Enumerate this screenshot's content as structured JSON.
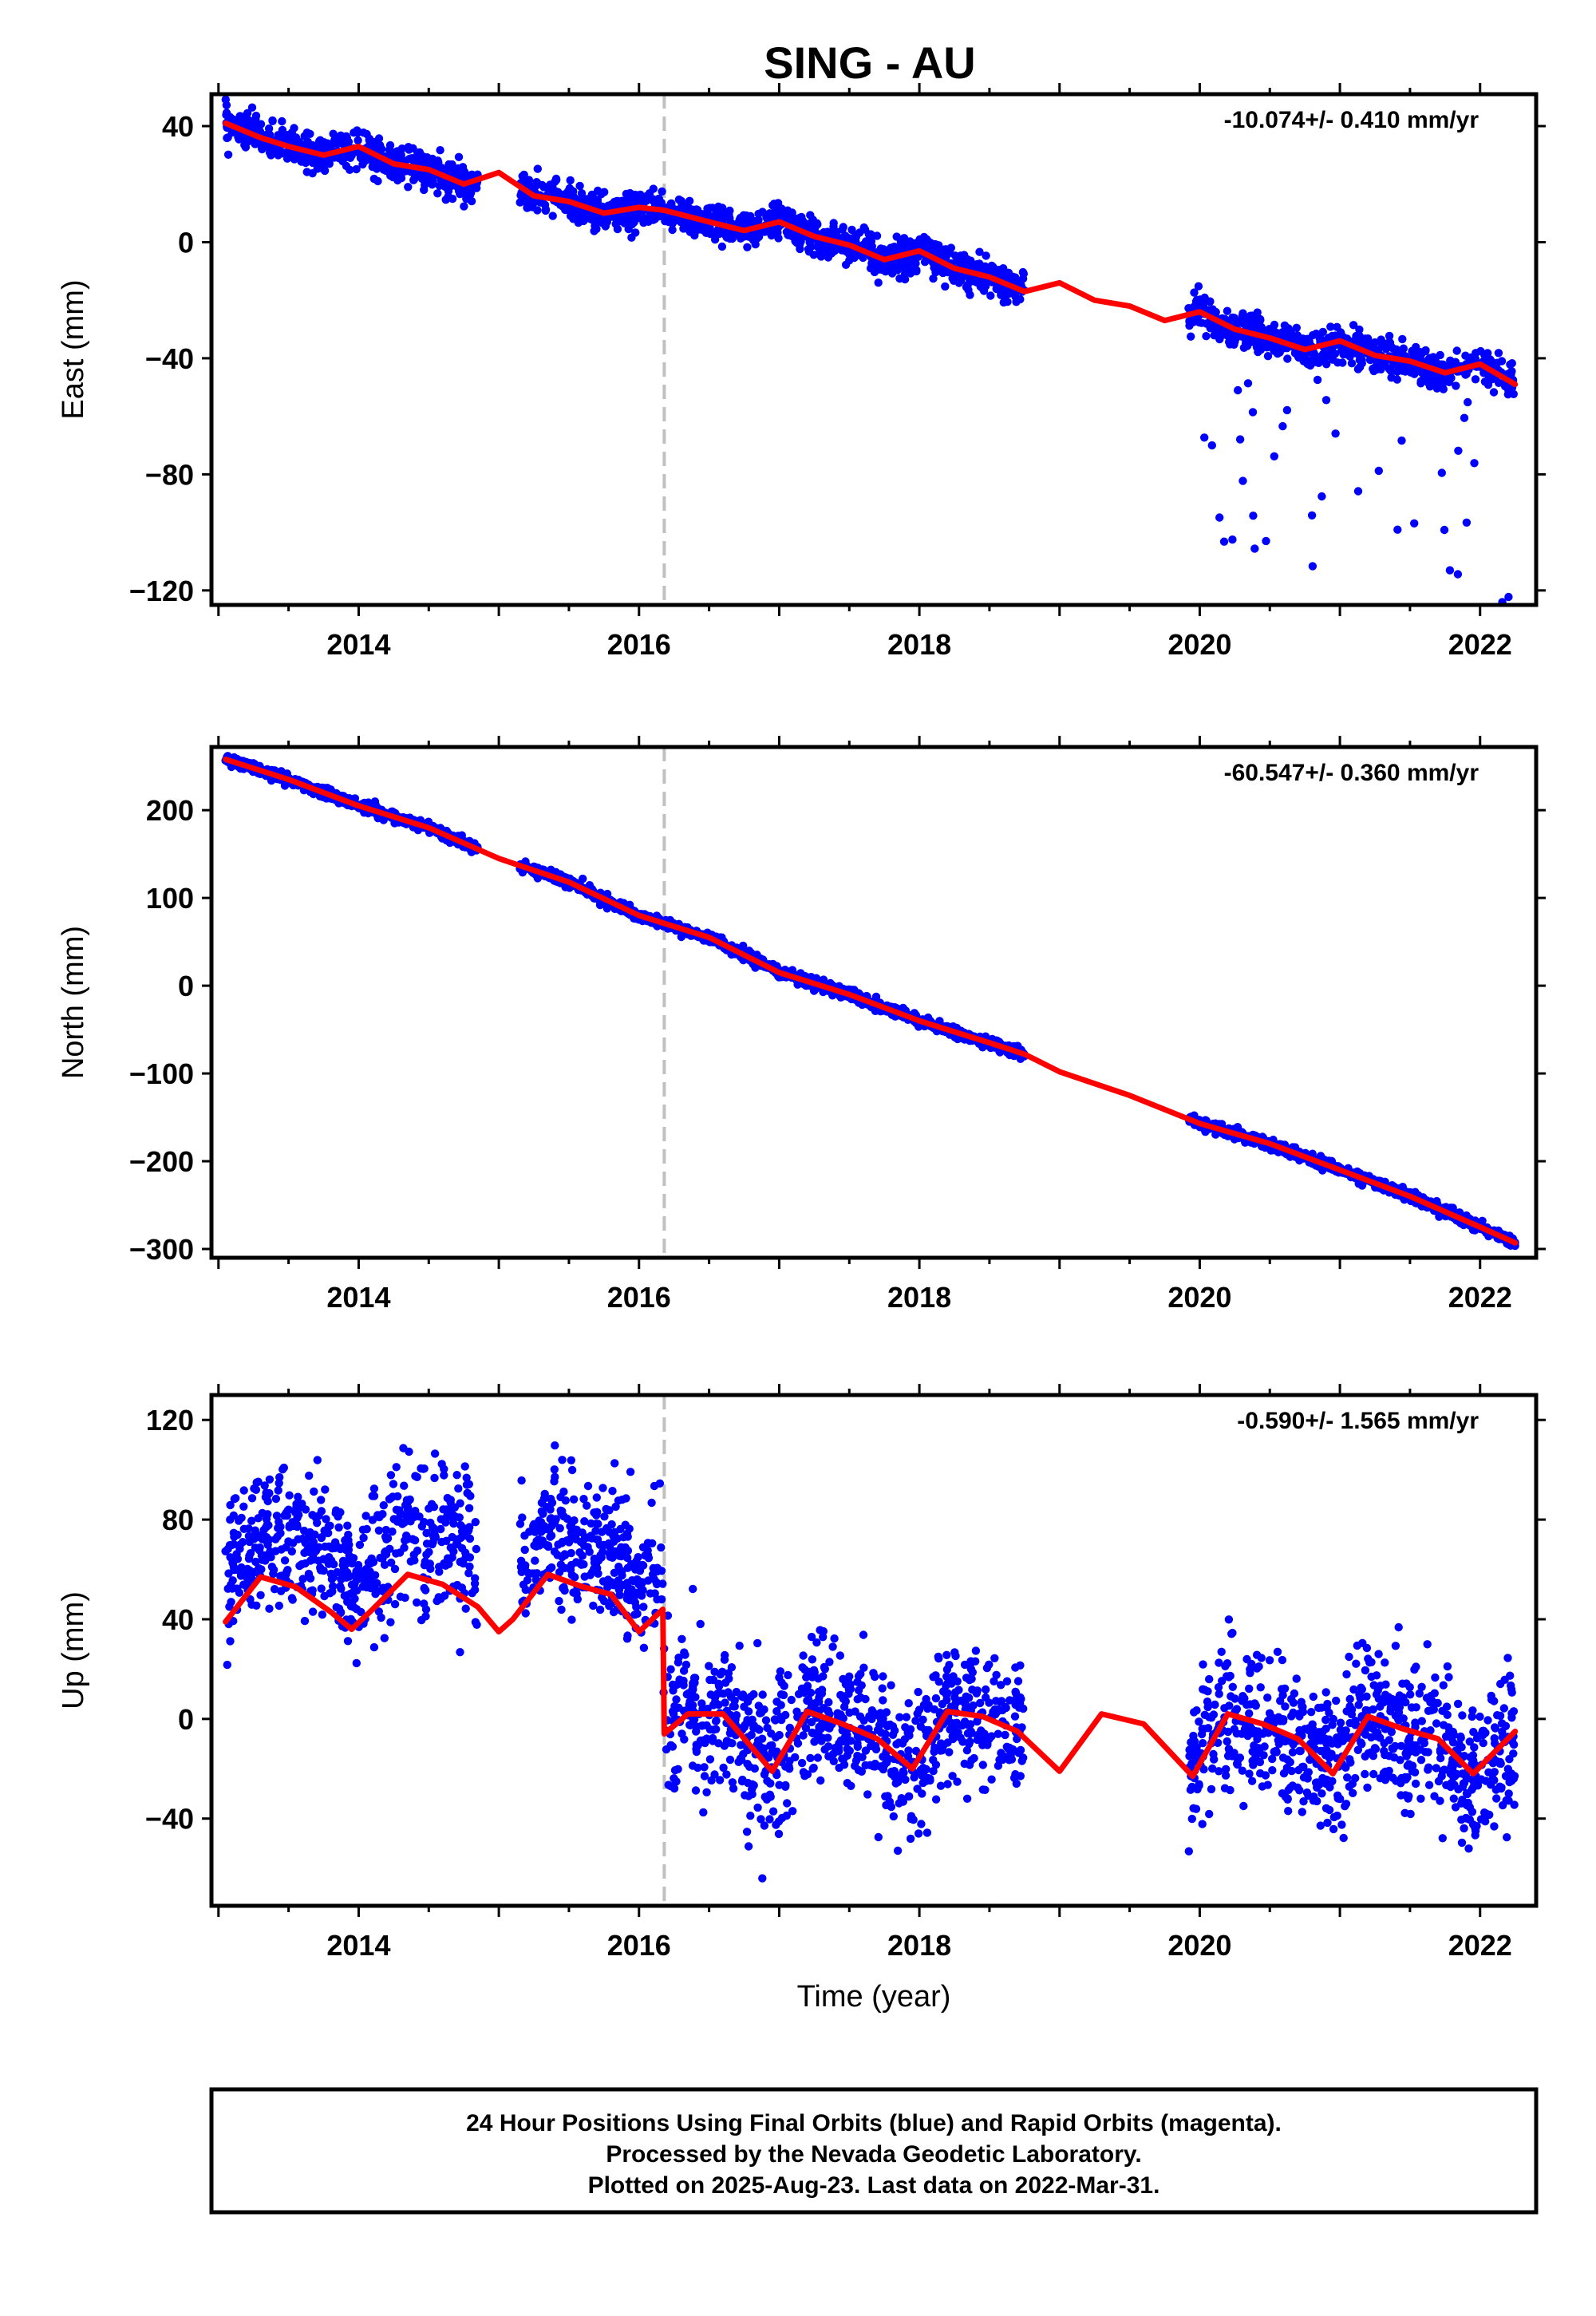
{
  "title": "SING - AU",
  "x_tick_labels": [
    "2014",
    "2016",
    "2018",
    "2020",
    "2022"
  ],
  "xlabel": "Time (year)",
  "colors": {
    "data": "#0000ff",
    "model": "#ff0000",
    "frame": "#000000",
    "marker": "#c0c0c0"
  },
  "footer": {
    "line1": "24 Hour Positions Using Final Orbits (blue) and Rapid Orbits (magenta).",
    "line2": "Processed by the Nevada Geodetic Laboratory.",
    "line3": "Plotted on 2025-Aug-23. Last data on 2022-Mar-31."
  },
  "chart_data": [
    {
      "type": "scatter",
      "panel": "east",
      "ylabel": "East (mm)",
      "rate_label": "-10.074+/- 0.410 mm/yr",
      "xlim": [
        2012.95,
        2022.4
      ],
      "ylim": [
        -125,
        51
      ],
      "yticks": [
        40,
        0,
        -40,
        -80,
        -120
      ],
      "ytick_labels": [
        "40",
        "0",
        "−40",
        "−80",
        "−120"
      ],
      "xticks": [
        2014,
        2016,
        2018,
        2020,
        2022
      ],
      "marker_x": 2016.18,
      "data_segments": [
        [
          2013.05,
          2014.85
        ],
        [
          2015.15,
          2015.85
        ],
        [
          2015.85,
          2018.75
        ],
        [
          2019.92,
          2022.25
        ]
      ],
      "scatter_sigma": 3,
      "outlier_ranges": [
        [
          2020.0,
          2022.25
        ]
      ],
      "model_series": {
        "name": "",
        "x": [
          2013.05,
          2013.3,
          2013.5,
          2013.75,
          2014.0,
          2014.25,
          2014.5,
          2014.75,
          2015.0,
          2015.25,
          2015.5,
          2015.75,
          2016.0,
          2016.18,
          2016.5,
          2016.75,
          2017.0,
          2017.25,
          2017.5,
          2017.75,
          2018.0,
          2018.25,
          2018.5,
          2018.75,
          2019.0,
          2019.25,
          2019.5,
          2019.75,
          2020.0,
          2020.25,
          2020.5,
          2020.75,
          2021.0,
          2021.25,
          2021.5,
          2021.75,
          2022.0,
          2022.25
        ],
        "y": [
          41,
          36,
          33,
          30,
          33,
          27,
          25,
          20,
          24,
          16,
          14,
          10,
          12,
          11,
          7,
          4,
          7,
          2,
          -1,
          -6,
          -3,
          -9,
          -12,
          -17,
          -14,
          -20,
          -22,
          -27,
          -24,
          -30,
          -33,
          -37,
          -34,
          -39,
          -41,
          -45,
          -42,
          -49
        ]
      }
    },
    {
      "type": "scatter",
      "panel": "north",
      "ylabel": "North (mm)",
      "rate_label": "-60.547+/- 0.360 mm/yr",
      "xlim": [
        2012.95,
        2022.4
      ],
      "ylim": [
        -310,
        272
      ],
      "yticks": [
        200,
        100,
        0,
        -100,
        -200,
        -300
      ],
      "ytick_labels": [
        "200",
        "100",
        "0",
        "−100",
        "−200",
        "−300"
      ],
      "xticks": [
        2014,
        2016,
        2018,
        2020,
        2022
      ],
      "marker_x": 2016.18,
      "data_segments": [
        [
          2013.05,
          2014.85
        ],
        [
          2015.15,
          2015.85
        ],
        [
          2015.85,
          2018.75
        ],
        [
          2019.92,
          2022.25
        ]
      ],
      "scatter_sigma": 3,
      "outlier_ranges": [],
      "model_series": {
        "name": "",
        "x": [
          2013.05,
          2013.5,
          2014.0,
          2014.5,
          2015.0,
          2015.5,
          2016.0,
          2016.5,
          2017.0,
          2017.5,
          2018.0,
          2018.5,
          2018.75,
          2019.0,
          2019.5,
          2020.0,
          2020.5,
          2021.0,
          2021.5,
          2022.0,
          2022.25
        ],
        "y": [
          258,
          235,
          205,
          180,
          145,
          118,
          80,
          55,
          15,
          -10,
          -40,
          -65,
          -78,
          -98,
          -125,
          -157,
          -180,
          -210,
          -240,
          -275,
          -293
        ]
      }
    },
    {
      "type": "scatter",
      "panel": "up",
      "ylabel": "Up (mm)",
      "rate_label": "-0.590+/- 1.565 mm/yr",
      "xlim": [
        2012.95,
        2022.4
      ],
      "ylim": [
        -75,
        130
      ],
      "yticks": [
        120,
        80,
        40,
        0,
        -40
      ],
      "ytick_labels": [
        "120",
        "80",
        "40",
        "0",
        "−40"
      ],
      "xticks": [
        2014,
        2016,
        2018,
        2020,
        2022
      ],
      "marker_x": 2016.18,
      "data_segments": [
        [
          2013.05,
          2014.85
        ],
        [
          2015.15,
          2015.85
        ],
        [
          2015.85,
          2018.75
        ],
        [
          2019.92,
          2022.25
        ]
      ],
      "scatter_sigma": 14,
      "outlier_ranges": [],
      "model_series": {
        "name": "",
        "x": [
          2013.05,
          2013.3,
          2013.55,
          2013.8,
          2013.95,
          2014.1,
          2014.35,
          2014.6,
          2014.85,
          2015.0,
          2015.1,
          2015.35,
          2015.6,
          2015.8,
          2016.0,
          2016.17,
          2016.18,
          2016.35,
          2016.6,
          2016.95,
          2017.2,
          2017.45,
          2017.7,
          2017.95,
          2018.2,
          2018.45,
          2018.7,
          2019.0,
          2019.3,
          2019.6,
          2019.95,
          2020.2,
          2020.45,
          2020.7,
          2020.95,
          2021.2,
          2021.45,
          2021.7,
          2021.95,
          2022.25
        ],
        "y": [
          39,
          57,
          53,
          43,
          36,
          44,
          58,
          54,
          45,
          35,
          40,
          58,
          53,
          50,
          35,
          44,
          -6,
          2,
          2,
          -21,
          3,
          -2,
          -8,
          -20,
          3,
          1,
          -5,
          -21,
          2,
          -2,
          -23,
          2,
          -2,
          -8,
          -22,
          1,
          -4,
          -8,
          -22,
          -5
        ]
      }
    }
  ]
}
